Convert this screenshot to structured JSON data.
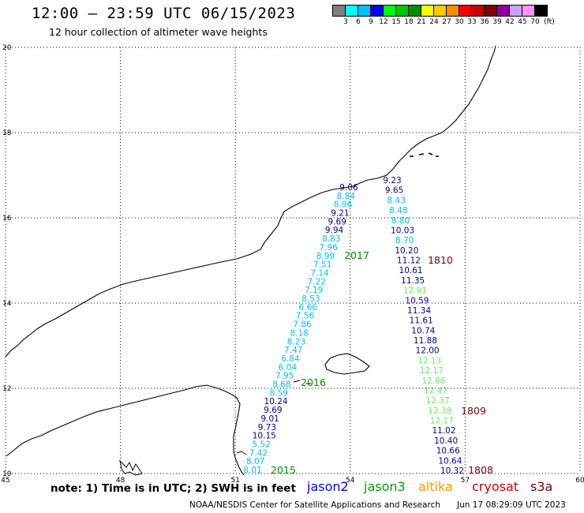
{
  "header": {
    "title": "12:00 – 23:59 UTC 06/15/2023",
    "subtitle": "12 hour collection of altimeter wave heights"
  },
  "legend": {
    "colors": [
      "#7f7f7f",
      "#00ffff",
      "#00bfff",
      "#0000ff",
      "#00ff00",
      "#00c800",
      "#008c00",
      "#ffff00",
      "#ffc800",
      "#ff8c00",
      "#ff0000",
      "#c80000",
      "#800000",
      "#9000a0",
      "#c8a0ff",
      "#ff90ff",
      "#000000"
    ],
    "labels": [
      "3",
      "6",
      "9",
      "12",
      "15",
      "18",
      "21",
      "24",
      "27",
      "30",
      "33",
      "36",
      "39",
      "42",
      "45",
      "70"
    ],
    "unit": "(ft)"
  },
  "map": {
    "lon_ticks": [
      "45",
      "48",
      "51",
      "54",
      "57",
      "60"
    ],
    "lat_ticks": [
      "10",
      "12",
      "14",
      "16",
      "18",
      "20"
    ],
    "lon_range": [
      45,
      60
    ],
    "lat_range": [
      10,
      20
    ],
    "grid": "dotted"
  },
  "tracks": {
    "track_2015_labels": [
      "2015",
      "2016",
      "2017"
    ],
    "west": {
      "color": "#00bfff",
      "points": [
        {
          "v": "8.01",
          "c": "#00bfff"
        },
        {
          "v": "8.07",
          "c": "#00bfff"
        },
        {
          "v": "7.42",
          "c": "#00bfff"
        },
        {
          "v": "5.52",
          "c": "#00bfff"
        },
        {
          "v": "10.15",
          "c": "#0000a0"
        },
        {
          "v": "9.73",
          "c": "#0000a0"
        },
        {
          "v": "9.01",
          "c": "#0000a0"
        },
        {
          "v": "9.69",
          "c": "#0000a0"
        },
        {
          "v": "10.24",
          "c": "#0000a0"
        },
        {
          "v": "8.59",
          "c": "#00bfff"
        },
        {
          "v": "8.68",
          "c": "#00bfff"
        },
        {
          "v": "7.95",
          "c": "#00bfff"
        },
        {
          "v": "6.04",
          "c": "#00bfff"
        },
        {
          "v": "6.84",
          "c": "#00bfff"
        },
        {
          "v": "7.47",
          "c": "#00bfff"
        },
        {
          "v": "8.23",
          "c": "#00bfff"
        },
        {
          "v": "8.18",
          "c": "#00bfff"
        },
        {
          "v": "7.86",
          "c": "#00bfff"
        },
        {
          "v": "7.56",
          "c": "#00bfff"
        },
        {
          "v": "6.66",
          "c": "#00bfff"
        },
        {
          "v": "8.53",
          "c": "#00bfff"
        },
        {
          "v": "7.19",
          "c": "#00bfff"
        },
        {
          "v": "7.22",
          "c": "#00bfff"
        },
        {
          "v": "7.14",
          "c": "#00bfff"
        },
        {
          "v": "7.51",
          "c": "#00bfff"
        },
        {
          "v": "8.99",
          "c": "#00bfff"
        },
        {
          "v": "7.96",
          "c": "#00bfff"
        },
        {
          "v": "8.83",
          "c": "#00bfff"
        },
        {
          "v": "9.94",
          "c": "#0000a0"
        },
        {
          "v": "9.69",
          "c": "#0000a0"
        },
        {
          "v": "9.21",
          "c": "#0000a0"
        },
        {
          "v": "8.96",
          "c": "#00bfff"
        },
        {
          "v": "8.84",
          "c": "#00bfff"
        },
        {
          "v": "9.06",
          "c": "#0000a0"
        }
      ]
    },
    "east": {
      "points": [
        {
          "v": "9.23",
          "c": "#0000a0"
        },
        {
          "v": "9.65",
          "c": "#0000a0"
        },
        {
          "v": "8.43",
          "c": "#00bfff"
        },
        {
          "v": "8.48",
          "c": "#00bfff"
        },
        {
          "v": "8.80",
          "c": "#00bfff"
        },
        {
          "v": "10.03",
          "c": "#0000a0"
        },
        {
          "v": "8.70",
          "c": "#00bfff"
        },
        {
          "v": "10.20",
          "c": "#0000a0"
        },
        {
          "v": "11.12",
          "c": "#0000a0"
        },
        {
          "v": "10.61",
          "c": "#0000a0"
        },
        {
          "v": "11.35",
          "c": "#0000a0"
        },
        {
          "v": "12.91",
          "c": "#66ee66"
        },
        {
          "v": "10.59",
          "c": "#0000a0"
        },
        {
          "v": "11.34",
          "c": "#0000a0"
        },
        {
          "v": "11.61",
          "c": "#0000a0"
        },
        {
          "v": "10.74",
          "c": "#0000a0"
        },
        {
          "v": "11.88",
          "c": "#0000a0"
        },
        {
          "v": "12.00",
          "c": "#0000a0"
        },
        {
          "v": "12.13",
          "c": "#66ee66"
        },
        {
          "v": "12.17",
          "c": "#66ee66"
        },
        {
          "v": "12.86",
          "c": "#66ee66"
        },
        {
          "v": "12.47",
          "c": "#66ee66"
        },
        {
          "v": "12.37",
          "c": "#66ee66"
        },
        {
          "v": "12.38",
          "c": "#66ee66"
        },
        {
          "v": "12.17",
          "c": "#66ee66"
        },
        {
          "v": "11.02",
          "c": "#0000a0"
        },
        {
          "v": "10.40",
          "c": "#0000a0"
        },
        {
          "v": "10.66",
          "c": "#0000a0"
        },
        {
          "v": "10.64",
          "c": "#0000a0"
        },
        {
          "v": "10.32",
          "c": "#0000a0"
        }
      ]
    },
    "pass_labels_east": [
      "1810",
      "1809",
      "1808"
    ]
  },
  "footer": {
    "note": "note: 1) Time is in UTC; 2) SWH is in feet",
    "satellites": [
      {
        "name": "jason2",
        "color": "#0000ff"
      },
      {
        "name": "jason3",
        "color": "#00a000"
      },
      {
        "name": "altika",
        "color": "#ff9900"
      },
      {
        "name": "cryosat",
        "color": "#cc0000"
      },
      {
        "name": "s3a",
        "color": "#800000"
      }
    ],
    "credit": "NOAA/NESDIS Center for Satellite Applications and Research",
    "timestamp": "Jun 17 08:29:09 UTC 2023"
  }
}
